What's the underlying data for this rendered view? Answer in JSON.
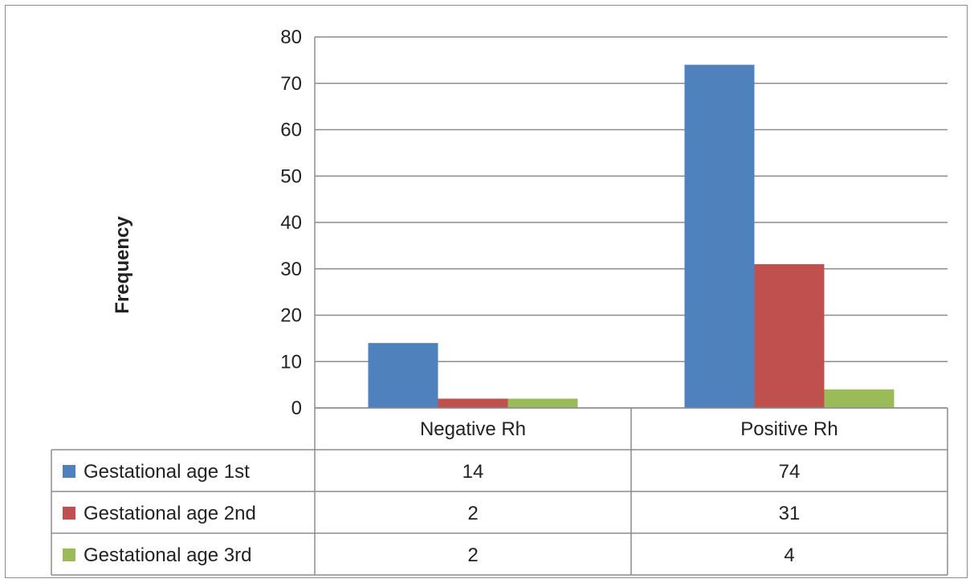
{
  "chart_data": {
    "type": "bar",
    "ylabel": "Frequency",
    "xlabel": "",
    "ylim": [
      0,
      80
    ],
    "yticks": [
      0,
      10,
      20,
      30,
      40,
      50,
      60,
      70,
      80
    ],
    "grid": true,
    "legend": "data-table",
    "categories": [
      "Negative Rh",
      "Positive Rh"
    ],
    "series": [
      {
        "name": "Gestational age 1st",
        "values": [
          14,
          74
        ],
        "color": "#4f81bd"
      },
      {
        "name": "Gestational age 2nd",
        "values": [
          2,
          31
        ],
        "color": "#c0504d"
      },
      {
        "name": "Gestational age 3rd",
        "values": [
          2,
          4
        ],
        "color": "#9bbb59"
      }
    ]
  }
}
